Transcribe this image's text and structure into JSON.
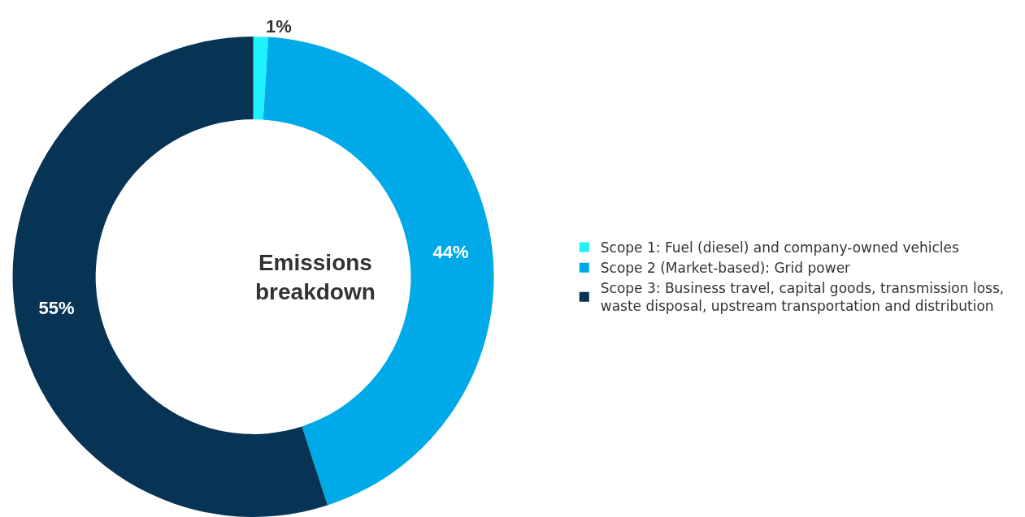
{
  "chart_data": {
    "type": "donut",
    "title": "Emissions breakdown",
    "categories": [
      "Scope 1: Fuel (diesel) and company-owned vehicles",
      "Scope 2 (Market-based): Grid power",
      "Scope 3: Business travel, capital goods, transmission loss, waste disposal, upstream transportation and distribution"
    ],
    "values": [
      1,
      44,
      55
    ],
    "colors": [
      "#1ef2ff",
      "#00a9e7",
      "#073354"
    ],
    "value_labels": [
      "1%",
      "44%",
      "55%"
    ],
    "legend": "right"
  }
}
